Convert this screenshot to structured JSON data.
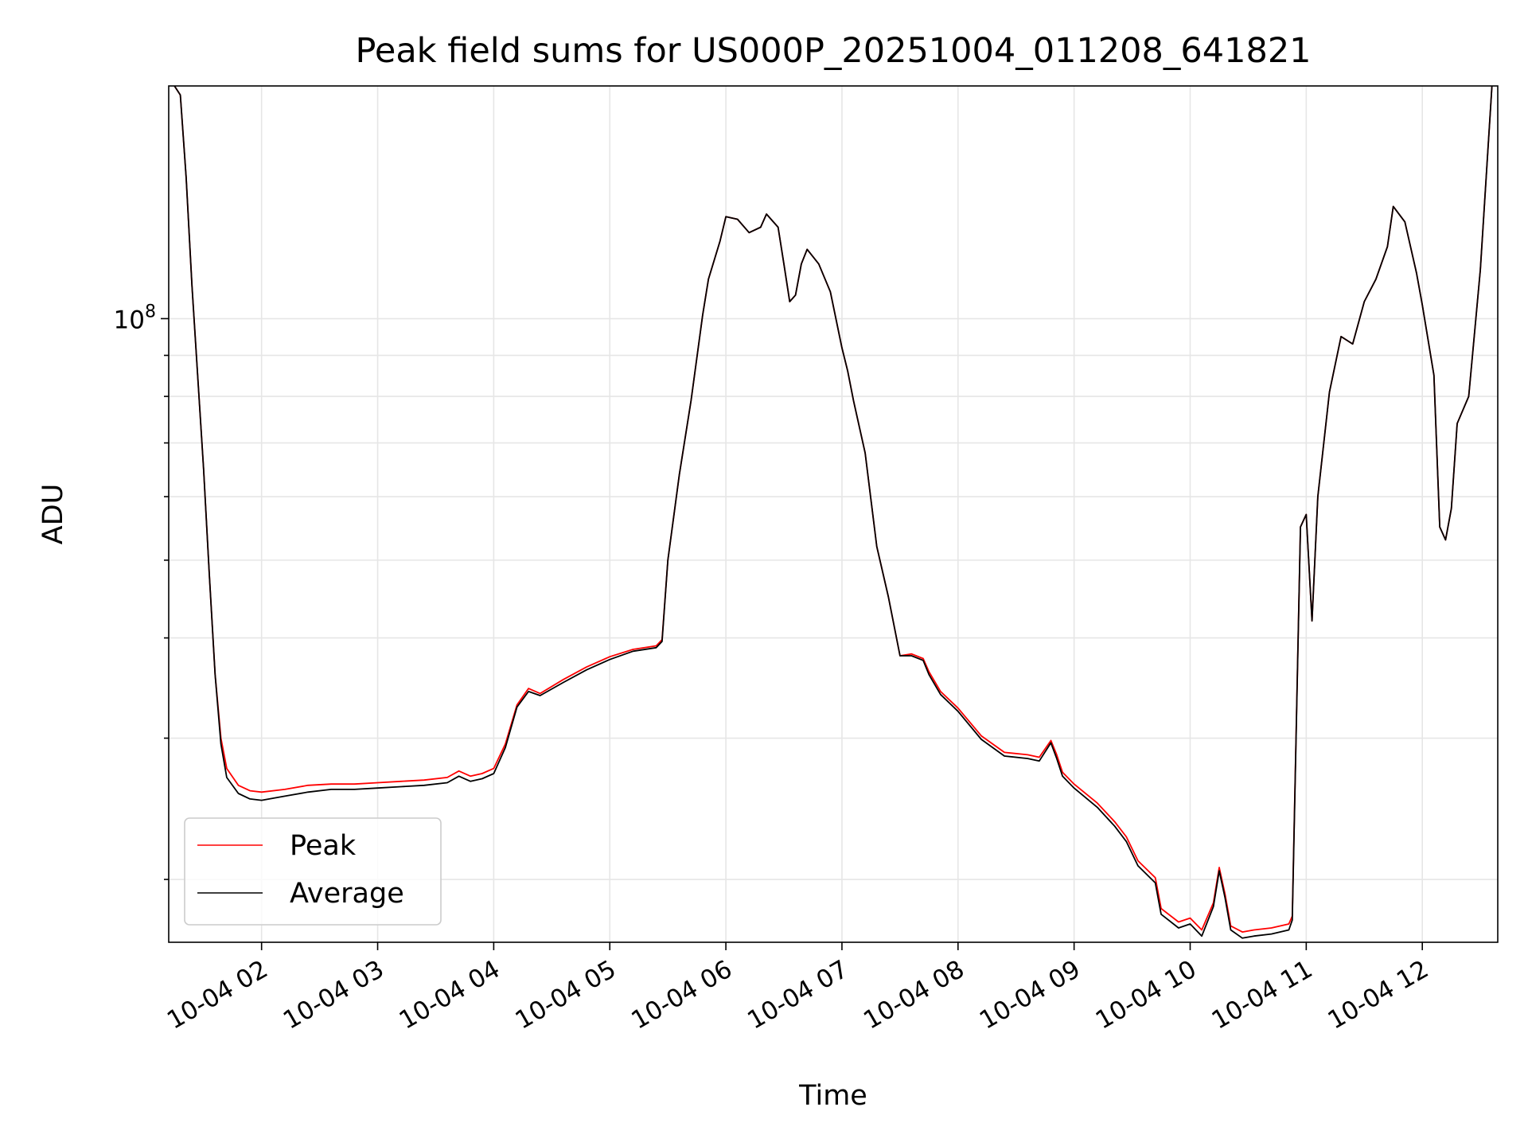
{
  "chart_data": {
    "type": "line",
    "title": "Peak field sums for US000P_20251004_011208_641821",
    "xlabel": "Time",
    "ylabel": "ADU",
    "yscale": "log",
    "ylim": [
      16700000,
      195000000
    ],
    "xlim_hours": [
      1.2,
      12.65
    ],
    "grid": true,
    "legend_position": "lower-left",
    "x_ticks": [
      {
        "hour": 2,
        "label": "10-04 02"
      },
      {
        "hour": 3,
        "label": "10-04 03"
      },
      {
        "hour": 4,
        "label": "10-04 04"
      },
      {
        "hour": 5,
        "label": "10-04 05"
      },
      {
        "hour": 6,
        "label": "10-04 06"
      },
      {
        "hour": 7,
        "label": "10-04 07"
      },
      {
        "hour": 8,
        "label": "10-04 08"
      },
      {
        "hour": 9,
        "label": "10-04 09"
      },
      {
        "hour": 10,
        "label": "10-04 10"
      },
      {
        "hour": 11,
        "label": "10-04 11"
      },
      {
        "hour": 12,
        "label": "10-04 12"
      }
    ],
    "y_tick_label": {
      "base": "10",
      "exponent": "8",
      "value": 100000000
    },
    "y_minor_ticks": [
      20000000,
      30000000,
      40000000,
      50000000,
      60000000,
      70000000,
      80000000,
      90000000,
      200000000
    ],
    "series": [
      {
        "name": "Peak",
        "color": "#ff0000",
        "points": [
          [
            1.2,
            200000000
          ],
          [
            1.3,
            190000000
          ],
          [
            1.35,
            150000000
          ],
          [
            1.4,
            110000000
          ],
          [
            1.5,
            65000000
          ],
          [
            1.55,
            48000000
          ],
          [
            1.6,
            36000000
          ],
          [
            1.65,
            30000000
          ],
          [
            1.7,
            27500000
          ],
          [
            1.8,
            26200000
          ],
          [
            1.9,
            25800000
          ],
          [
            2.0,
            25700000
          ],
          [
            2.2,
            25900000
          ],
          [
            2.4,
            26200000
          ],
          [
            2.6,
            26300000
          ],
          [
            2.8,
            26300000
          ],
          [
            3.0,
            26400000
          ],
          [
            3.2,
            26500000
          ],
          [
            3.4,
            26600000
          ],
          [
            3.6,
            26800000
          ],
          [
            3.7,
            27300000
          ],
          [
            3.8,
            26900000
          ],
          [
            3.9,
            27100000
          ],
          [
            4.0,
            27500000
          ],
          [
            4.1,
            29500000
          ],
          [
            4.2,
            33000000
          ],
          [
            4.3,
            34600000
          ],
          [
            4.4,
            34100000
          ],
          [
            4.6,
            35500000
          ],
          [
            4.8,
            36800000
          ],
          [
            5.0,
            37900000
          ],
          [
            5.2,
            38700000
          ],
          [
            5.4,
            39100000
          ],
          [
            5.45,
            39800000
          ],
          [
            5.5,
            50000000
          ],
          [
            5.6,
            64000000
          ],
          [
            5.7,
            79000000
          ],
          [
            5.8,
            101000000
          ],
          [
            5.85,
            112000000
          ],
          [
            5.95,
            125000000
          ],
          [
            6.0,
            134000000
          ],
          [
            6.1,
            133000000
          ],
          [
            6.2,
            128000000
          ],
          [
            6.3,
            130000000
          ],
          [
            6.35,
            135000000
          ],
          [
            6.45,
            130000000
          ],
          [
            6.5,
            117000000
          ],
          [
            6.55,
            105000000
          ],
          [
            6.6,
            107000000
          ],
          [
            6.65,
            117000000
          ],
          [
            6.7,
            122000000
          ],
          [
            6.8,
            117000000
          ],
          [
            6.9,
            108000000
          ],
          [
            7.0,
            92000000
          ],
          [
            7.05,
            86000000
          ],
          [
            7.1,
            79000000
          ],
          [
            7.2,
            68000000
          ],
          [
            7.3,
            52000000
          ],
          [
            7.4,
            45000000
          ],
          [
            7.5,
            38000000
          ],
          [
            7.6,
            38200000
          ],
          [
            7.7,
            37700000
          ],
          [
            7.75,
            36300000
          ],
          [
            7.85,
            34300000
          ],
          [
            8.0,
            32700000
          ],
          [
            8.2,
            30200000
          ],
          [
            8.4,
            28800000
          ],
          [
            8.6,
            28600000
          ],
          [
            8.7,
            28400000
          ],
          [
            8.8,
            29800000
          ],
          [
            8.85,
            28600000
          ],
          [
            8.9,
            27200000
          ],
          [
            9.0,
            26300000
          ],
          [
            9.2,
            24900000
          ],
          [
            9.35,
            23600000
          ],
          [
            9.45,
            22600000
          ],
          [
            9.55,
            21100000
          ],
          [
            9.7,
            20100000
          ],
          [
            9.75,
            18400000
          ],
          [
            9.9,
            17700000
          ],
          [
            10.0,
            17900000
          ],
          [
            10.1,
            17300000
          ],
          [
            10.2,
            18700000
          ],
          [
            10.25,
            20700000
          ],
          [
            10.3,
            19200000
          ],
          [
            10.35,
            17500000
          ],
          [
            10.45,
            17200000
          ],
          [
            10.55,
            17300000
          ],
          [
            10.7,
            17400000
          ],
          [
            10.85,
            17600000
          ],
          [
            10.88,
            18000000
          ],
          [
            10.95,
            55000000
          ],
          [
            11.0,
            57000000
          ],
          [
            11.05,
            42000000
          ],
          [
            11.1,
            60000000
          ],
          [
            11.2,
            81000000
          ],
          [
            11.3,
            95000000
          ],
          [
            11.4,
            93000000
          ],
          [
            11.5,
            105000000
          ],
          [
            11.6,
            112000000
          ],
          [
            11.7,
            123000000
          ],
          [
            11.75,
            138000000
          ],
          [
            11.85,
            132000000
          ],
          [
            11.95,
            114000000
          ],
          [
            12.0,
            104000000
          ],
          [
            12.1,
            85000000
          ],
          [
            12.15,
            55000000
          ],
          [
            12.2,
            53000000
          ],
          [
            12.25,
            58000000
          ],
          [
            12.3,
            74000000
          ],
          [
            12.4,
            80000000
          ],
          [
            12.5,
            115000000
          ],
          [
            12.6,
            195000000
          ],
          [
            12.65,
            200000000
          ]
        ]
      },
      {
        "name": "Average",
        "color": "#000000",
        "points": [
          [
            1.2,
            200000000
          ],
          [
            1.3,
            190000000
          ],
          [
            1.35,
            150000000
          ],
          [
            1.4,
            110000000
          ],
          [
            1.5,
            65000000
          ],
          [
            1.55,
            48000000
          ],
          [
            1.6,
            36000000
          ],
          [
            1.65,
            29500000
          ],
          [
            1.7,
            26800000
          ],
          [
            1.8,
            25600000
          ],
          [
            1.9,
            25200000
          ],
          [
            2.0,
            25100000
          ],
          [
            2.2,
            25400000
          ],
          [
            2.4,
            25700000
          ],
          [
            2.6,
            25900000
          ],
          [
            2.8,
            25900000
          ],
          [
            3.0,
            26000000
          ],
          [
            3.2,
            26100000
          ],
          [
            3.4,
            26200000
          ],
          [
            3.6,
            26400000
          ],
          [
            3.7,
            26900000
          ],
          [
            3.8,
            26500000
          ],
          [
            3.9,
            26700000
          ],
          [
            4.0,
            27100000
          ],
          [
            4.1,
            29200000
          ],
          [
            4.2,
            32800000
          ],
          [
            4.3,
            34300000
          ],
          [
            4.4,
            33900000
          ],
          [
            4.6,
            35200000
          ],
          [
            4.8,
            36500000
          ],
          [
            5.0,
            37600000
          ],
          [
            5.2,
            38500000
          ],
          [
            5.4,
            38900000
          ],
          [
            5.45,
            39600000
          ],
          [
            5.5,
            50000000
          ],
          [
            5.6,
            64000000
          ],
          [
            5.7,
            79000000
          ],
          [
            5.8,
            101000000
          ],
          [
            5.85,
            112000000
          ],
          [
            5.95,
            125000000
          ],
          [
            6.0,
            134000000
          ],
          [
            6.1,
            133000000
          ],
          [
            6.2,
            128000000
          ],
          [
            6.3,
            130000000
          ],
          [
            6.35,
            135000000
          ],
          [
            6.45,
            130000000
          ],
          [
            6.5,
            117000000
          ],
          [
            6.55,
            105000000
          ],
          [
            6.6,
            107000000
          ],
          [
            6.65,
            117000000
          ],
          [
            6.7,
            122000000
          ],
          [
            6.8,
            117000000
          ],
          [
            6.9,
            108000000
          ],
          [
            7.0,
            92000000
          ],
          [
            7.05,
            86000000
          ],
          [
            7.1,
            79000000
          ],
          [
            7.2,
            68000000
          ],
          [
            7.3,
            52000000
          ],
          [
            7.4,
            45000000
          ],
          [
            7.5,
            38000000
          ],
          [
            7.6,
            38000000
          ],
          [
            7.7,
            37500000
          ],
          [
            7.75,
            36000000
          ],
          [
            7.85,
            34000000
          ],
          [
            8.0,
            32400000
          ],
          [
            8.2,
            29900000
          ],
          [
            8.4,
            28500000
          ],
          [
            8.6,
            28300000
          ],
          [
            8.7,
            28100000
          ],
          [
            8.8,
            29600000
          ],
          [
            8.85,
            28300000
          ],
          [
            8.9,
            26900000
          ],
          [
            9.0,
            26000000
          ],
          [
            9.2,
            24600000
          ],
          [
            9.35,
            23300000
          ],
          [
            9.45,
            22300000
          ],
          [
            9.55,
            20800000
          ],
          [
            9.7,
            19800000
          ],
          [
            9.75,
            18100000
          ],
          [
            9.9,
            17400000
          ],
          [
            10.0,
            17600000
          ],
          [
            10.1,
            17000000
          ],
          [
            10.2,
            18500000
          ],
          [
            10.25,
            20500000
          ],
          [
            10.3,
            19000000
          ],
          [
            10.35,
            17300000
          ],
          [
            10.45,
            16900000
          ],
          [
            10.55,
            17000000
          ],
          [
            10.7,
            17100000
          ],
          [
            10.85,
            17300000
          ],
          [
            10.88,
            17800000
          ],
          [
            10.95,
            55000000
          ],
          [
            11.0,
            57000000
          ],
          [
            11.05,
            42000000
          ],
          [
            11.1,
            60000000
          ],
          [
            11.2,
            81000000
          ],
          [
            11.3,
            95000000
          ],
          [
            11.4,
            93000000
          ],
          [
            11.5,
            105000000
          ],
          [
            11.6,
            112000000
          ],
          [
            11.7,
            123000000
          ],
          [
            11.75,
            138000000
          ],
          [
            11.85,
            132000000
          ],
          [
            11.95,
            114000000
          ],
          [
            12.0,
            104000000
          ],
          [
            12.1,
            85000000
          ],
          [
            12.15,
            55000000
          ],
          [
            12.2,
            53000000
          ],
          [
            12.25,
            58000000
          ],
          [
            12.3,
            74000000
          ],
          [
            12.4,
            80000000
          ],
          [
            12.5,
            115000000
          ],
          [
            12.6,
            195000000
          ],
          [
            12.65,
            200000000
          ]
        ]
      }
    ]
  }
}
